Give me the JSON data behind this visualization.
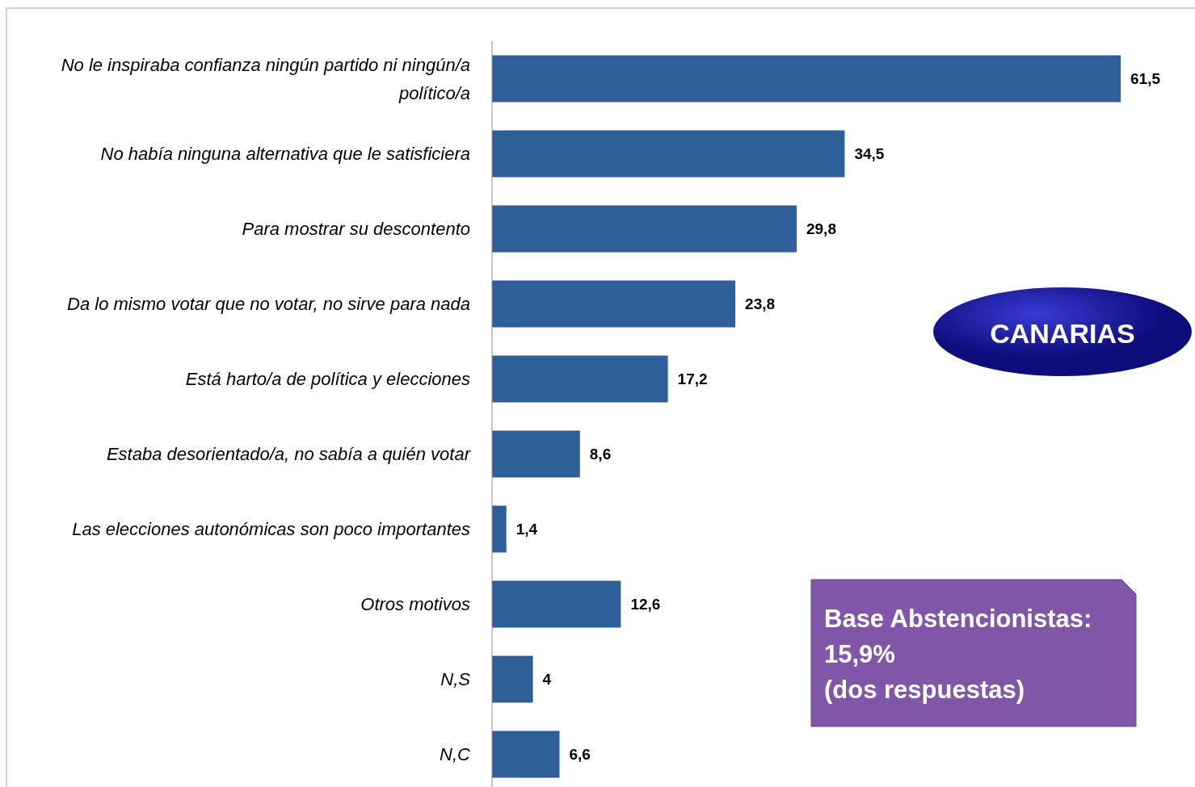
{
  "chart_data": {
    "type": "bar",
    "orientation": "horizontal",
    "categories": [
      "No le inspiraba confianza ningún partido ni ningún/a político/a",
      "No había ninguna alternativa que le satisficiera",
      "Para mostrar su descontento",
      "Da lo mismo votar que no votar, no sirve para nada",
      "Está harto/a de política y elecciones",
      "Estaba desorientado/a, no sabía a quién votar",
      "Las elecciones autonómicas son poco importantes",
      "Otros motivos",
      "N,S",
      "N,C"
    ],
    "values": [
      61.5,
      34.5,
      29.8,
      23.8,
      17.2,
      8.6,
      1.4,
      12.6,
      4,
      6.6
    ],
    "value_labels": [
      "61,5",
      "34,5",
      "29,8",
      "23,8",
      "17,2",
      "8,6",
      "1,4",
      "12,6",
      "4",
      "6,6"
    ],
    "color": "#2e5f99",
    "tick_labels": "y",
    "annotations": [
      "CANARIAS",
      "Base Abstencionistas:\n15,9%\n(dos respuestas)"
    ]
  }
}
